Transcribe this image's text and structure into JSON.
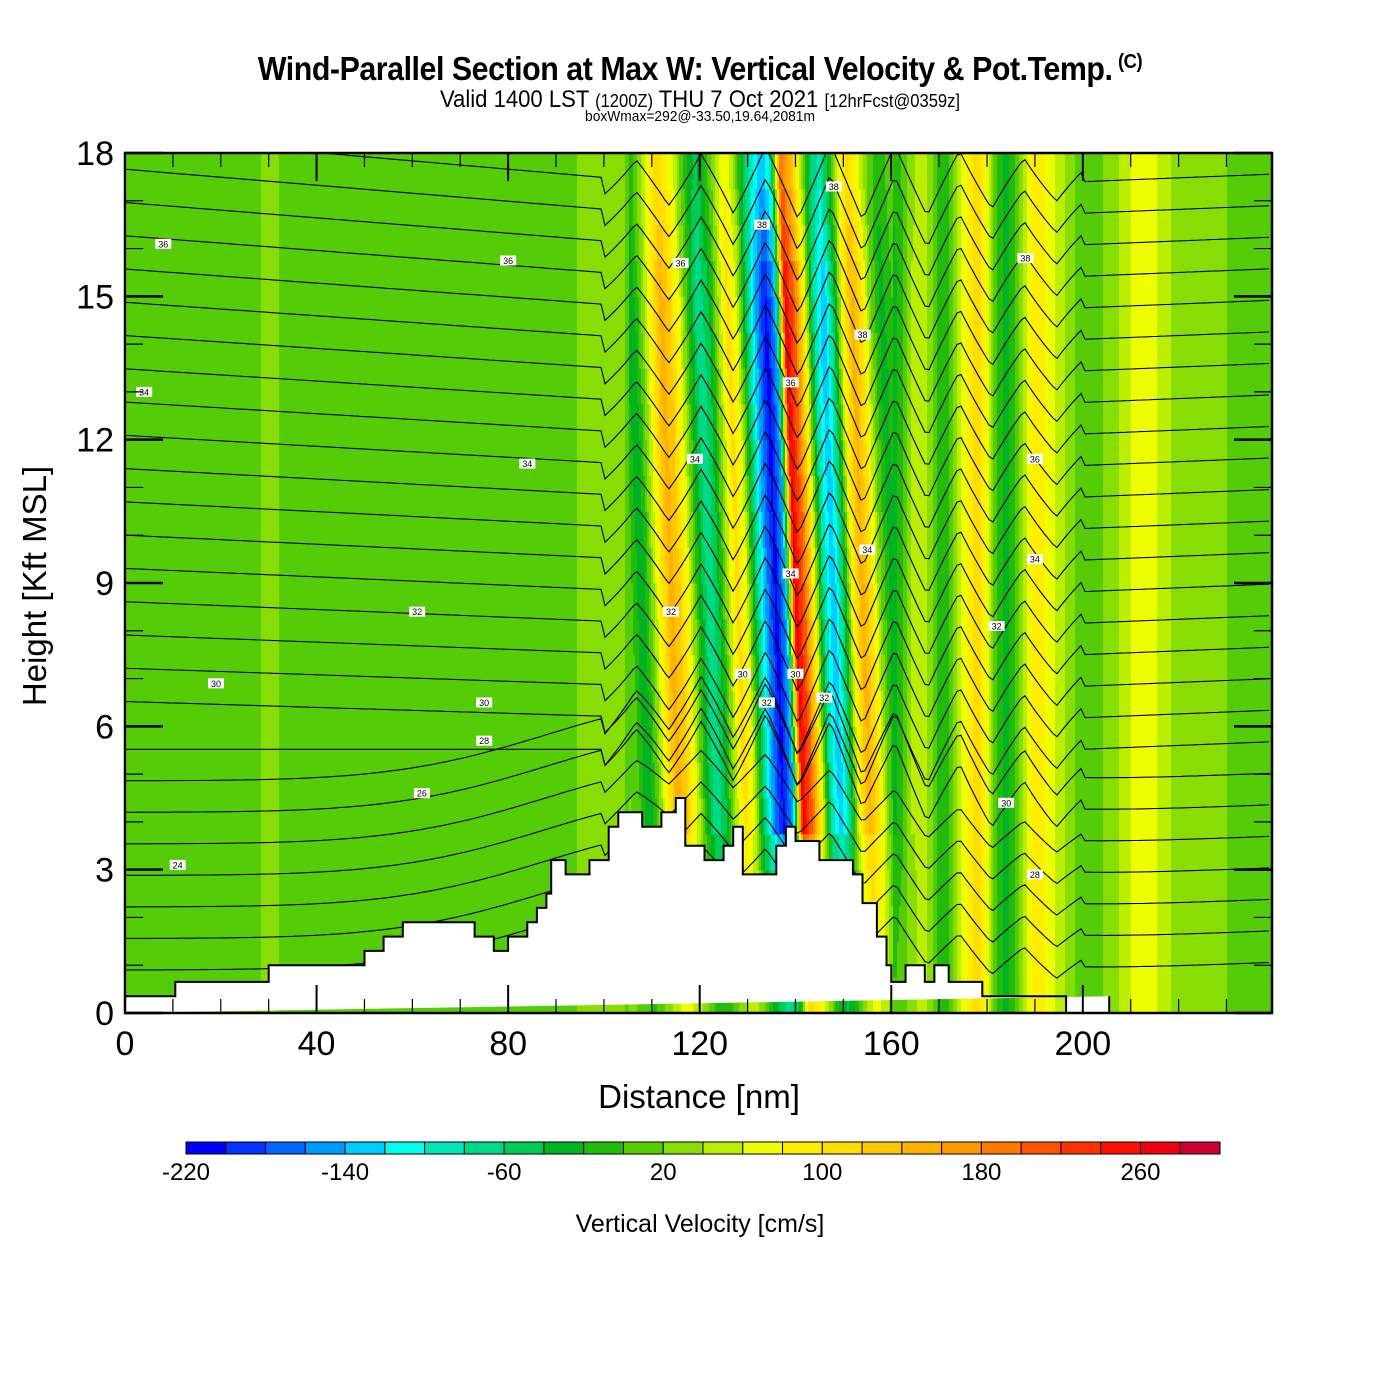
{
  "header": {
    "title": "Wind-Parallel Section at Max W: Vertical Velocity & Pot.Temp.",
    "copyright": "(C)",
    "valid_prefix": "Valid 1400 LST",
    "valid_zulu": "(1200Z)",
    "valid_date": "THU 7 Oct 2021",
    "forecast": "[12hrFcst@0359z]",
    "box_max": "boxWmax=292@-33.50,19.64,2081m"
  },
  "chart_data": {
    "type": "heatmap",
    "title": "Wind-Parallel Section at Max W: Vertical Velocity & Pot.Temp.",
    "xlabel": "Distance [nm]",
    "ylabel": "Height [Kft MSL]",
    "xlim": [
      0,
      239.5
    ],
    "ylim": [
      0,
      18
    ],
    "x_ticks": [
      "0",
      "40",
      "80",
      "120",
      "160",
      "200"
    ],
    "x_tick_values": [
      0,
      40,
      80,
      120,
      160,
      200
    ],
    "y_ticks": [
      "0",
      "3",
      "6",
      "9",
      "12",
      "15",
      "18"
    ],
    "y_tick_values": [
      0,
      3,
      6,
      9,
      12,
      15,
      18
    ],
    "x_minor_step": 10,
    "y_minor_step": 1,
    "colorbar": {
      "title": "Vertical Velocity [cm/s]",
      "min": -220,
      "max": 300,
      "step": 20,
      "tick_labels": [
        "-220",
        "-140",
        "-60",
        "20",
        "100",
        "180",
        "260"
      ],
      "tick_values": [
        -220,
        -140,
        -60,
        20,
        100,
        180,
        260
      ],
      "colors": [
        "#0000ff",
        "#0033ff",
        "#0066ff",
        "#0099ff",
        "#00ccff",
        "#00ffee",
        "#00e6bb",
        "#00d988",
        "#00cc55",
        "#00b322",
        "#22bb0a",
        "#55cc08",
        "#88dd04",
        "#bbee00",
        "#eeff00",
        "#ffee00",
        "#ffdd00",
        "#ffc600",
        "#ffb000",
        "#ff9900",
        "#ff7a00",
        "#ff5500",
        "#ff3300",
        "#ff1100",
        "#ee0010",
        "#cc0033"
      ]
    },
    "velocity_bands": {
      "x": [
        0,
        4,
        8,
        12,
        16,
        20,
        24,
        28,
        32,
        36,
        40,
        44,
        48,
        52,
        56,
        60,
        64,
        68,
        72,
        76,
        80,
        84,
        88,
        92,
        96,
        100,
        104,
        106,
        108,
        110,
        112,
        114,
        116,
        118,
        120,
        122,
        124,
        126,
        128,
        130,
        132,
        134,
        136,
        138,
        140,
        142,
        144,
        146,
        148,
        150,
        152,
        154,
        156,
        158,
        160,
        162,
        164,
        166,
        168,
        170,
        172,
        174,
        176,
        178,
        180,
        182,
        184,
        186,
        188,
        190,
        194,
        198,
        202,
        206,
        210,
        214,
        218,
        222,
        226,
        230,
        234,
        239.5
      ],
      "w": [
        20,
        10,
        20,
        10,
        5,
        20,
        5,
        20,
        20,
        10,
        20,
        0,
        5,
        20,
        10,
        15,
        5,
        5,
        10,
        20,
        10,
        0,
        20,
        10,
        30,
        40,
        20,
        0,
        -40,
        20,
        90,
        150,
        120,
        60,
        -20,
        -80,
        -40,
        40,
        110,
        60,
        -60,
        -150,
        -210,
        -140,
        270,
        200,
        80,
        -80,
        -140,
        -60,
        80,
        150,
        100,
        20,
        -30,
        -10,
        40,
        60,
        30,
        -20,
        0,
        50,
        90,
        110,
        60,
        -10,
        -30,
        10,
        60,
        100,
        60,
        20,
        10,
        30,
        60,
        70,
        40,
        20,
        30,
        20,
        10,
        20
      ]
    },
    "theta_contours": {
      "levels": [
        24,
        26,
        28,
        30,
        32,
        34,
        36,
        38
      ],
      "unit": "deg C",
      "labels_shown": [
        "36",
        "34",
        "32",
        "30",
        "28",
        "26",
        "24",
        "38"
      ]
    },
    "terrain_profile": {
      "x": [
        0,
        10.5,
        10.5,
        30,
        30,
        50,
        50,
        54,
        54,
        58,
        58,
        73,
        73,
        77,
        77,
        80,
        80,
        84,
        84,
        86,
        86,
        88,
        88,
        89,
        89,
        92,
        92,
        97,
        97,
        101,
        101,
        103,
        103,
        108,
        108,
        112,
        112,
        115,
        115,
        117,
        117,
        121,
        121,
        125,
        125,
        127,
        127,
        129,
        129,
        136,
        136,
        138,
        138,
        140,
        140,
        145,
        145,
        152,
        152,
        154,
        154,
        157,
        157,
        159,
        159,
        160,
        160,
        163,
        163,
        167,
        167,
        169,
        169,
        172,
        172,
        179,
        179,
        196.5,
        196.5,
        205.5,
        205.5,
        239.5
      ],
      "h": [
        0.35,
        0.35,
        0.65,
        0.65,
        1.0,
        1.0,
        1.3,
        1.3,
        1.6,
        1.6,
        1.9,
        1.9,
        1.6,
        1.6,
        1.3,
        1.3,
        1.6,
        1.6,
        1.9,
        1.9,
        2.2,
        2.2,
        2.5,
        2.5,
        3.2,
        3.2,
        2.9,
        2.9,
        3.2,
        3.2,
        3.9,
        3.9,
        4.2,
        4.2,
        3.9,
        3.9,
        4.2,
        4.2,
        4.5,
        4.5,
        3.5,
        3.5,
        3.2,
        3.2,
        3.5,
        3.5,
        3.9,
        3.9,
        2.9,
        2.9,
        3.5,
        3.5,
        3.9,
        3.9,
        3.6,
        3.6,
        3.2,
        3.2,
        2.9,
        2.9,
        2.3,
        2.3,
        1.6,
        1.6,
        1.0,
        1.0,
        0.65,
        0.65,
        1.0,
        1.0,
        0.65,
        0.65,
        1.0,
        1.0,
        0.65,
        0.65,
        0.35,
        0.35,
        0.0,
        0.0,
        0.35
      ]
    }
  }
}
